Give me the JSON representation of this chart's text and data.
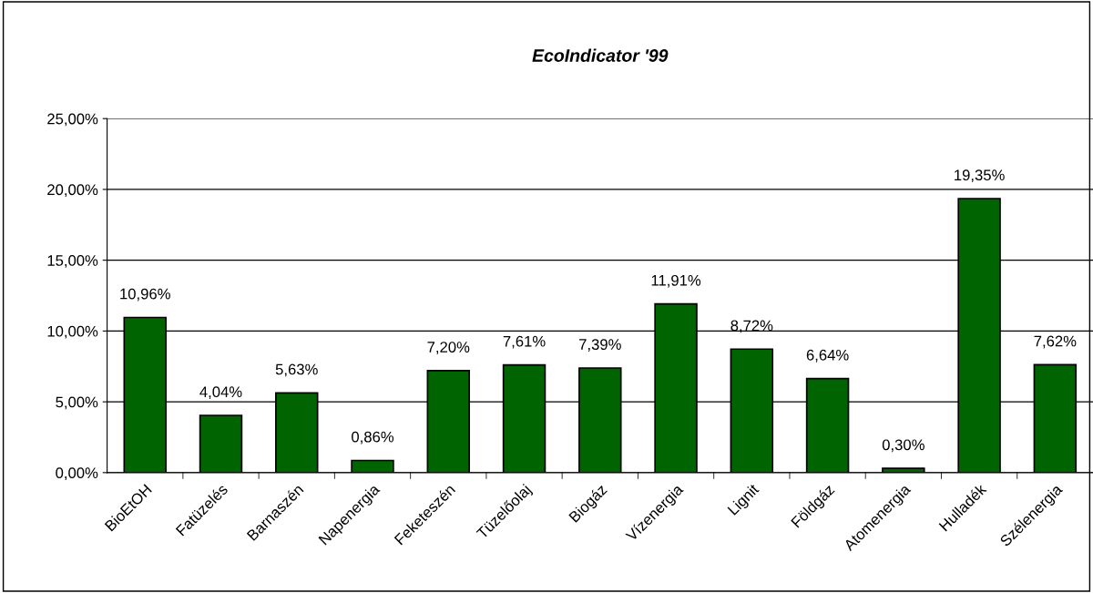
{
  "chart_data": {
    "type": "bar",
    "title": "EcoIndicator '99",
    "categories": [
      "BioEtOH",
      "Fatüzelés",
      "Barnaszén",
      "Napenergia",
      "Feketeszén",
      "Tüzelőolaj",
      "Biogáz",
      "Vízenergia",
      "Lignit",
      "Földgáz",
      "Atomenergia",
      "Hulladék",
      "Szélenergia"
    ],
    "values": [
      10.96,
      4.04,
      5.63,
      0.86,
      7.2,
      7.61,
      7.39,
      11.91,
      8.72,
      6.64,
      0.3,
      19.35,
      7.62
    ],
    "value_labels": [
      "10,96%",
      "4,04%",
      "5,63%",
      "0,86%",
      "7,20%",
      "7,61%",
      "7,39%",
      "11,91%",
      "8,72%",
      "6,64%",
      "0,30%",
      "19,35%",
      "7,62%"
    ],
    "color": "#006400",
    "ylim": [
      0,
      25
    ],
    "yticks": [
      {
        "value": 0,
        "label": "0,00%"
      },
      {
        "value": 5,
        "label": "5,00%"
      },
      {
        "value": 10,
        "label": "10,00%"
      },
      {
        "value": 15,
        "label": "15,00%"
      },
      {
        "value": 20,
        "label": "20,00%"
      },
      {
        "value": 25,
        "label": "25,00%"
      }
    ],
    "grid": "y",
    "legend": false
  }
}
